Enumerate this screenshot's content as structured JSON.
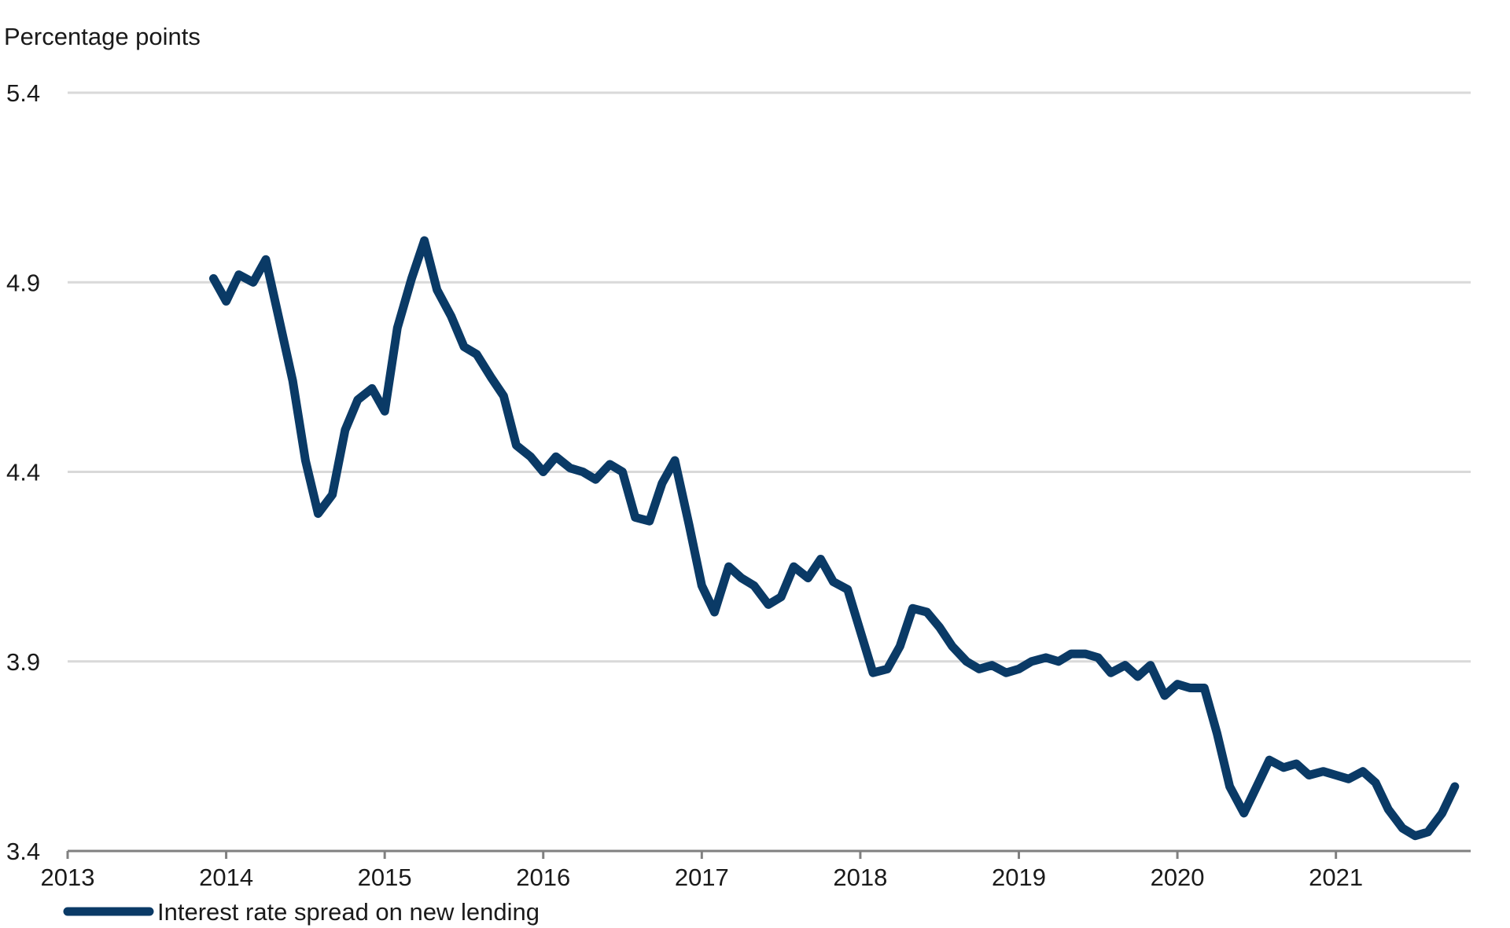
{
  "chart_data": {
    "type": "line",
    "title": "",
    "ylabel": "Percentage points",
    "xlabel": "",
    "ylim": [
      3.4,
      5.4
    ],
    "xlim": [
      2013,
      2021.85
    ],
    "yticks": [
      "3.4",
      "3.9",
      "4.4",
      "4.9",
      "5.4"
    ],
    "xticks": [
      "2013",
      "2014",
      "2015",
      "2016",
      "2017",
      "2018",
      "2019",
      "2020",
      "2021"
    ],
    "grid": true,
    "legend_position": "bottom-left",
    "colors": {
      "series": "#0a3a66",
      "grid": "#d9d9d9",
      "axis": "#808080"
    },
    "series": [
      {
        "name": "Interest rate spread on new lending",
        "x": [
          2013.92,
          2014.0,
          2014.08,
          2014.17,
          2014.25,
          2014.33,
          2014.42,
          2014.5,
          2014.58,
          2014.67,
          2014.75,
          2014.83,
          2014.92,
          2015.0,
          2015.08,
          2015.17,
          2015.25,
          2015.33,
          2015.42,
          2015.5,
          2015.58,
          2015.67,
          2015.75,
          2015.83,
          2015.92,
          2016.0,
          2016.08,
          2016.17,
          2016.25,
          2016.33,
          2016.42,
          2016.5,
          2016.58,
          2016.67,
          2016.75,
          2016.83,
          2016.92,
          2017.0,
          2017.08,
          2017.17,
          2017.25,
          2017.33,
          2017.42,
          2017.5,
          2017.58,
          2017.67,
          2017.75,
          2017.83,
          2017.92,
          2018.0,
          2018.08,
          2018.17,
          2018.25,
          2018.33,
          2018.42,
          2018.5,
          2018.58,
          2018.67,
          2018.75,
          2018.83,
          2018.92,
          2019.0,
          2019.08,
          2019.17,
          2019.25,
          2019.33,
          2019.42,
          2019.5,
          2019.58,
          2019.67,
          2019.75,
          2019.83,
          2019.92,
          2020.0,
          2020.08,
          2020.17,
          2020.25,
          2020.33,
          2020.42,
          2020.5,
          2020.58,
          2020.67,
          2020.75,
          2020.83,
          2020.92,
          2021.0,
          2021.08,
          2021.17,
          2021.25,
          2021.33,
          2021.42,
          2021.5,
          2021.58,
          2021.67,
          2021.75
        ],
        "values": [
          4.91,
          4.85,
          4.92,
          4.9,
          4.96,
          4.81,
          4.64,
          4.43,
          4.29,
          4.34,
          4.51,
          4.59,
          4.62,
          4.56,
          4.78,
          4.91,
          5.01,
          4.88,
          4.81,
          4.73,
          4.71,
          4.65,
          4.6,
          4.47,
          4.44,
          4.4,
          4.44,
          4.41,
          4.4,
          4.38,
          4.42,
          4.4,
          4.28,
          4.27,
          4.37,
          4.43,
          4.26,
          4.1,
          4.03,
          4.15,
          4.12,
          4.1,
          4.05,
          4.07,
          4.15,
          4.12,
          4.17,
          4.11,
          4.09,
          3.98,
          3.87,
          3.88,
          3.94,
          4.04,
          4.03,
          3.99,
          3.94,
          3.9,
          3.88,
          3.89,
          3.87,
          3.88,
          3.9,
          3.91,
          3.9,
          3.92,
          3.92,
          3.91,
          3.87,
          3.89,
          3.86,
          3.89,
          3.81,
          3.84,
          3.83,
          3.83,
          3.71,
          3.57,
          3.5,
          3.57,
          3.64,
          3.62,
          3.63,
          3.6,
          3.61,
          3.6,
          3.59,
          3.61,
          3.58,
          3.51,
          3.46,
          3.44,
          3.45,
          3.5,
          3.57
        ]
      }
    ]
  }
}
